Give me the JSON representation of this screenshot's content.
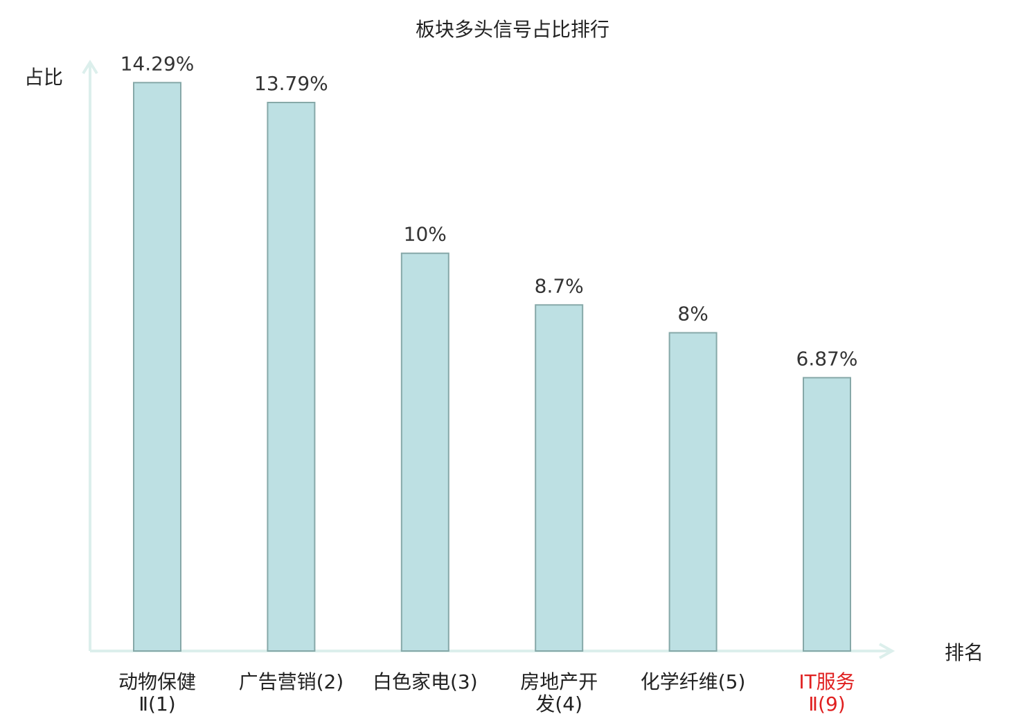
{
  "chart_data": {
    "type": "bar",
    "title": "板块多头信号占比排行",
    "ylabel": "占比",
    "xlabel": "排名",
    "categories": [
      [
        "动物保健",
        "Ⅱ(1)"
      ],
      [
        "广告营销(2)"
      ],
      [
        "白色家电(3)"
      ],
      [
        "房地产开",
        "发(4)"
      ],
      [
        "化学纤维(5)"
      ],
      [
        "IT服务",
        "Ⅱ(9)"
      ]
    ],
    "values": [
      14.29,
      13.79,
      10,
      8.7,
      8,
      6.87
    ],
    "value_labels": [
      "14.29%",
      "13.79%",
      "10%",
      "8.7%",
      "8%",
      "6.87%"
    ],
    "highlight_index": 5,
    "ylim": [
      0,
      14.8
    ],
    "grid": false,
    "colors": {
      "bar_fill": "#bde0e3",
      "bar_stroke": "#86a8a8",
      "axis": "#dcefec",
      "text": "#333333",
      "title": "#222222",
      "highlight": "#e02020"
    }
  }
}
